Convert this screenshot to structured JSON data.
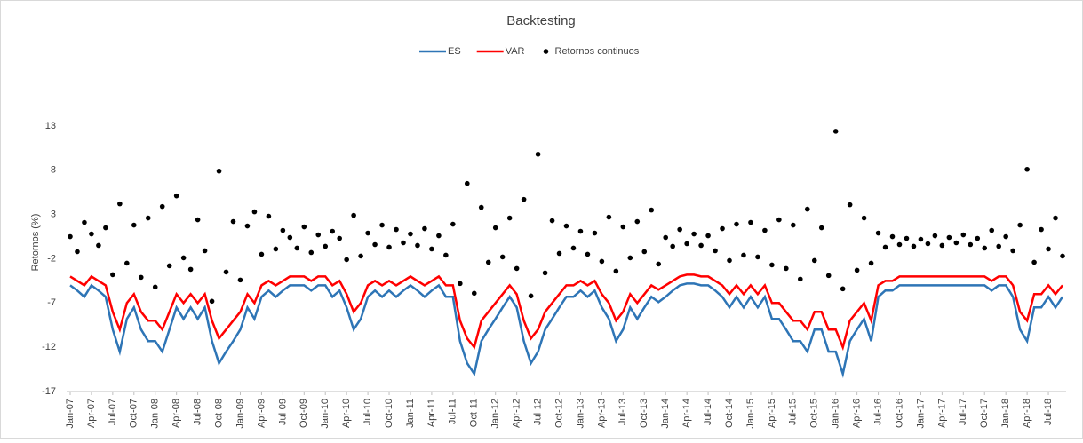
{
  "chart_data": {
    "type": "line",
    "title": "Backtesting",
    "y_label": "Retornos (%)",
    "categories": [
      "Jan-07",
      null,
      null,
      "Apr-07",
      null,
      null,
      "Jul-07",
      null,
      null,
      "Oct-07",
      null,
      null,
      "Jan-08",
      null,
      null,
      "Apr-08",
      null,
      null,
      "Jul-08",
      null,
      null,
      "Oct-08",
      null,
      null,
      "Jan-09",
      null,
      null,
      "Apr-09",
      null,
      null,
      "Jul-09",
      null,
      null,
      "Oct-09",
      null,
      null,
      "Jan-10",
      null,
      null,
      "Apr-10",
      null,
      null,
      "Jul-10",
      null,
      null,
      "Oct-10",
      null,
      null,
      "Jan-11",
      null,
      null,
      "Apr-11",
      null,
      null,
      "Jul-11",
      null,
      null,
      "Oct-11",
      null,
      null,
      "Jan-12",
      null,
      null,
      "Apr-12",
      null,
      null,
      "Jul-12",
      null,
      null,
      "Oct-12",
      null,
      null,
      "Jan-13",
      null,
      null,
      "Apr-13",
      null,
      null,
      "Jul-13",
      null,
      null,
      "Oct-13",
      null,
      null,
      "Jan-14",
      null,
      null,
      "Apr-14",
      null,
      null,
      "Jul-14",
      null,
      null,
      "Oct-14",
      null,
      null,
      "Jan-15",
      null,
      null,
      "Apr-15",
      null,
      null,
      "Jul-15",
      null,
      null,
      "Oct-15",
      null,
      null,
      "Jan-16",
      null,
      null,
      "Apr-16",
      null,
      null,
      "Jul-16",
      null,
      null,
      "Oct-16",
      null,
      null,
      "Jan-17",
      null,
      null,
      "Apr-17",
      null,
      null,
      "Jul-17",
      null,
      null,
      "Oct-17",
      null,
      null,
      "Jan-18",
      null,
      null,
      "Apr-18",
      null,
      null,
      "Jul-18",
      null,
      null
    ],
    "series": [
      {
        "name": "ES",
        "color": "#2e75b6",
        "type": "line",
        "values": [
          -5,
          -5.6,
          -6.3,
          -5,
          -5.6,
          -6.3,
          -10,
          -12.5,
          -8.8,
          -7.5,
          -10,
          -11.3,
          -11.3,
          -12.5,
          -10,
          -7.5,
          -8.8,
          -7.5,
          -8.8,
          -7.5,
          -11.3,
          -13.8,
          -12.5,
          -11.3,
          -10,
          -7.5,
          -8.8,
          -6.3,
          -5.6,
          -6.3,
          -5.6,
          -5,
          -5,
          -5,
          -5.6,
          -5,
          -5,
          -6.3,
          -5.6,
          -7.5,
          -10,
          -8.8,
          -6.3,
          -5.6,
          -6.3,
          -5.6,
          -6.3,
          -5.6,
          -5,
          -5.6,
          -6.3,
          -5.6,
          -5,
          -6.3,
          -6.3,
          -11.3,
          -13.8,
          -15,
          -11.3,
          -10,
          -8.8,
          -7.5,
          -6.3,
          -7.5,
          -11.3,
          -13.8,
          -12.5,
          -10,
          -8.8,
          -7.5,
          -6.3,
          -6.3,
          -5.6,
          -6.3,
          -5.6,
          -7.5,
          -8.8,
          -11.3,
          -10,
          -7.5,
          -8.8,
          -7.5,
          -6.3,
          -6.9,
          -6.3,
          -5.6,
          -5,
          -4.8,
          -4.8,
          -5,
          -5,
          -5.6,
          -6.3,
          -7.5,
          -6.3,
          -7.5,
          -6.3,
          -7.5,
          -6.3,
          -8.8,
          -8.8,
          -10,
          -11.3,
          -11.3,
          -12.5,
          -10,
          -10,
          -12.5,
          -12.5,
          -15,
          -11.3,
          -10,
          -8.8,
          -11.3,
          -6.3,
          -5.6,
          -5.6,
          -5,
          -5,
          -5,
          -5,
          -5,
          -5,
          -5,
          -5,
          -5,
          -5,
          -5,
          -5,
          -5,
          -5.6,
          -5,
          -5,
          -6.3,
          -10,
          -11.3,
          -7.5,
          -7.5,
          -6.3,
          -7.5,
          -6.3
        ]
      },
      {
        "name": "VAR",
        "color": "#ff0000",
        "type": "line",
        "values": [
          -4,
          -4.5,
          -5,
          -4,
          -4.5,
          -5,
          -8,
          -10,
          -7,
          -6,
          -8,
          -9,
          -9,
          -10,
          -8,
          -6,
          -7,
          -6,
          -7,
          -6,
          -9,
          -11,
          -10,
          -9,
          -8,
          -6,
          -7,
          -5,
          -4.5,
          -5,
          -4.5,
          -4,
          -4,
          -4,
          -4.5,
          -4,
          -4,
          -5,
          -4.5,
          -6,
          -8,
          -7,
          -5,
          -4.5,
          -5,
          -4.5,
          -5,
          -4.5,
          -4,
          -4.5,
          -5,
          -4.5,
          -4,
          -5,
          -5,
          -9,
          -11,
          -12,
          -9,
          -8,
          -7,
          -6,
          -5,
          -6,
          -9,
          -11,
          -10,
          -8,
          -7,
          -6,
          -5,
          -5,
          -4.5,
          -5,
          -4.5,
          -6,
          -7,
          -9,
          -8,
          -6,
          -7,
          -6,
          -5,
          -5.5,
          -5,
          -4.5,
          -4,
          -3.8,
          -3.8,
          -4,
          -4,
          -4.5,
          -5,
          -6,
          -5,
          -6,
          -5,
          -6,
          -5,
          -7,
          -7,
          -8,
          -9,
          -9,
          -10,
          -8,
          -8,
          -10,
          -10,
          -12,
          -9,
          -8,
          -7,
          -9,
          -5,
          -4.5,
          -4.5,
          -4,
          -4,
          -4,
          -4,
          -4,
          -4,
          -4,
          -4,
          -4,
          -4,
          -4,
          -4,
          -4,
          -4.5,
          -4,
          -4,
          -5,
          -8,
          -9,
          -6,
          -6,
          -5,
          -6,
          -5
        ]
      },
      {
        "name": "Retornos continuos",
        "color": "#000000",
        "type": "scatter",
        "values": [
          0.5,
          -1.2,
          2.1,
          0.8,
          -0.5,
          1.5,
          -3.8,
          4.2,
          -2.5,
          1.8,
          -4.1,
          2.6,
          -5.2,
          3.9,
          -2.8,
          5.1,
          -1.9,
          -3.2,
          2.4,
          -1.1,
          -6.8,
          7.9,
          -3.5,
          2.2,
          -4.4,
          1.7,
          3.3,
          -1.5,
          2.8,
          -0.9,
          1.2,
          0.4,
          -0.8,
          1.6,
          -1.3,
          0.7,
          -0.6,
          1.1,
          0.3,
          -2.1,
          2.9,
          -1.7,
          0.9,
          -0.4,
          1.8,
          -0.7,
          1.3,
          -0.2,
          0.8,
          -0.5,
          1.4,
          -0.9,
          0.6,
          -1.6,
          1.9,
          -4.8,
          6.5,
          -5.9,
          3.8,
          -2.4,
          1.5,
          -1.8,
          2.6,
          -3.1,
          4.7,
          -6.2,
          9.8,
          -3.6,
          2.3,
          -1.4,
          1.7,
          -0.8,
          1.1,
          -1.5,
          0.9,
          -2.3,
          2.7,
          -3.4,
          1.6,
          -1.9,
          2.2,
          -1.2,
          3.5,
          -2.6,
          0.4,
          -0.6,
          1.3,
          -0.3,
          0.8,
          -0.5,
          0.6,
          -1.1,
          1.4,
          -2.2,
          1.9,
          -1.6,
          2.1,
          -1.8,
          1.2,
          -2.7,
          2.4,
          -3.1,
          1.8,
          -4.3,
          3.6,
          -2.2,
          1.5,
          -3.9,
          12.4,
          -5.4,
          4.1,
          -3.3,
          2.6,
          -2.5,
          0.9,
          -0.7,
          0.5,
          -0.4,
          0.3,
          -0.6,
          0.2,
          -0.3,
          0.6,
          -0.5,
          0.4,
          -0.2,
          0.7,
          -0.4,
          0.3,
          -0.8,
          1.2,
          -0.6,
          0.5,
          -1.1,
          1.8,
          8.1,
          -2.4,
          1.3,
          -0.9,
          2.6,
          -1.7
        ]
      }
    ],
    "ylim": [
      -17,
      17
    ],
    "yticks": [
      -17,
      -12,
      -7,
      -2,
      3,
      8,
      13
    ],
    "grid": false,
    "legend": "top"
  }
}
